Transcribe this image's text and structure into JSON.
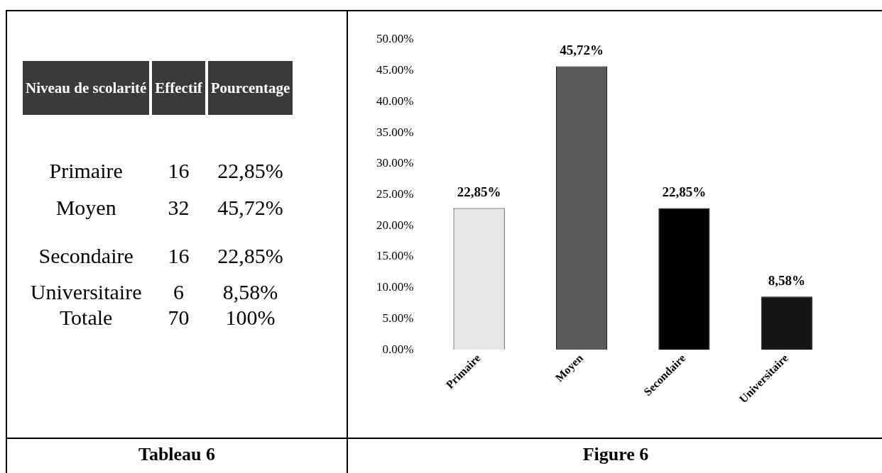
{
  "chart_data": [
    {
      "type": "other",
      "title": "Tableau 6",
      "annotations": [
        "Niveau de scolarité",
        "Effectif",
        "Pourcentage",
        "Primaire",
        "16",
        "22,85%",
        "Moyen",
        "32",
        "45,72%",
        "Secondaire",
        "16",
        "22,85%",
        "Universitaire",
        "6",
        "8,58%",
        "Totale",
        "70",
        "100%"
      ]
    },
    {
      "type": "bar",
      "title": "Figure 6",
      "categories": [
        "Primaire",
        "Moyen",
        "Secondaire",
        "Universitaire"
      ],
      "values": [
        22.85,
        45.72,
        22.85,
        8.58
      ],
      "colors": [
        "#e6e6e6",
        "#5a5a5a",
        "#000000",
        "#151515"
      ],
      "value_labels": [
        "22,85%",
        "45,72%",
        "22,85%",
        "8,58%"
      ],
      "ylim": [
        0,
        50
      ],
      "yticks": [
        {
          "value": 0,
          "label": "0.00%"
        },
        {
          "value": 5,
          "label": "5.00%"
        },
        {
          "value": 10,
          "label": "10.00%"
        },
        {
          "value": 15,
          "label": "15.00%"
        },
        {
          "value": 20,
          "label": "20.00%"
        },
        {
          "value": 25,
          "label": "25.00%"
        },
        {
          "value": 30,
          "label": "30.00%"
        },
        {
          "value": 35,
          "label": "35.00%"
        },
        {
          "value": 40,
          "label": "40.00%"
        },
        {
          "value": 45,
          "label": "45.00%"
        },
        {
          "value": 50,
          "label": "50.00%"
        }
      ],
      "grid": false,
      "legend": false
    }
  ]
}
